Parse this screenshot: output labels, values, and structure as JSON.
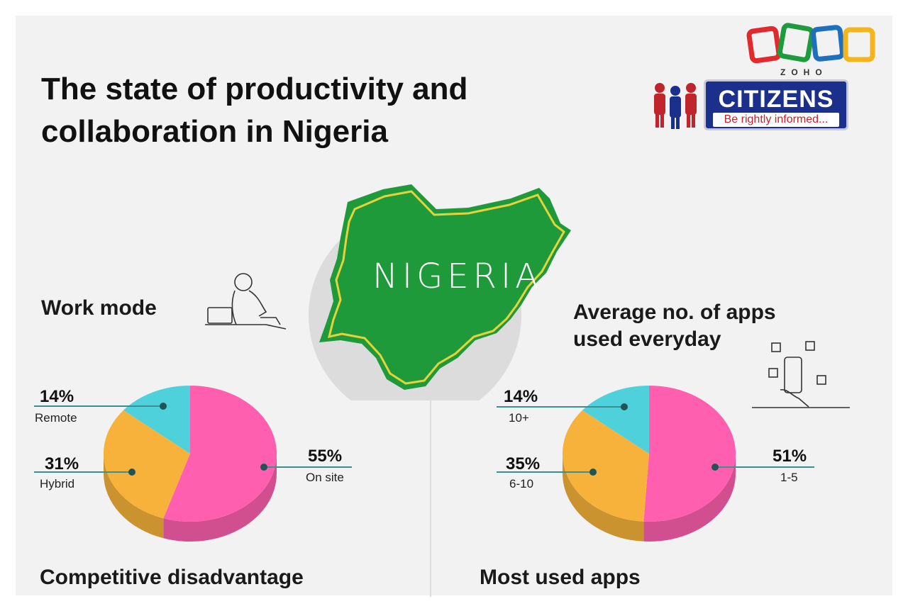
{
  "header": {
    "title_line1": "The state of productivity and",
    "title_line2": "collaboration in Nigeria"
  },
  "logos": {
    "zoho": "ZOHO",
    "citizens": "CITIZENS",
    "citizens_tagline": "Be rightly informed..."
  },
  "map_label": "NIGERIA",
  "sections": {
    "work_mode": "Work mode",
    "apps_line1": "Average no. of apps",
    "apps_line2": "used everyday",
    "competitive": "Competitive disadvantage",
    "most_used": "Most used apps"
  },
  "colors": {
    "pink": "#ff5fae",
    "orange": "#f7b23b",
    "cyan": "#4fd1dc",
    "map_green": "#1f9a3a",
    "connector": "#3a8f8f"
  },
  "icons": [
    "zoho-logo-icon",
    "citizens-people-icon",
    "person-at-laptop-icon",
    "phone-apps-icon"
  ],
  "chart_data": [
    {
      "type": "pie",
      "title": "Work mode",
      "slices": [
        {
          "label": "On site",
          "value": 55,
          "display": "55%",
          "color": "#ff5fae"
        },
        {
          "label": "Hybrid",
          "value": 31,
          "display": "31%",
          "color": "#f7b23b"
        },
        {
          "label": "Remote",
          "value": 14,
          "display": "14%",
          "color": "#4fd1dc"
        }
      ]
    },
    {
      "type": "pie",
      "title": "Average no. of apps used everyday",
      "slices": [
        {
          "label": "1-5",
          "value": 51,
          "display": "51%",
          "color": "#ff5fae"
        },
        {
          "label": "6-10",
          "value": 35,
          "display": "35%",
          "color": "#f7b23b"
        },
        {
          "label": "10+",
          "value": 14,
          "display": "14%",
          "color": "#4fd1dc"
        }
      ]
    }
  ]
}
